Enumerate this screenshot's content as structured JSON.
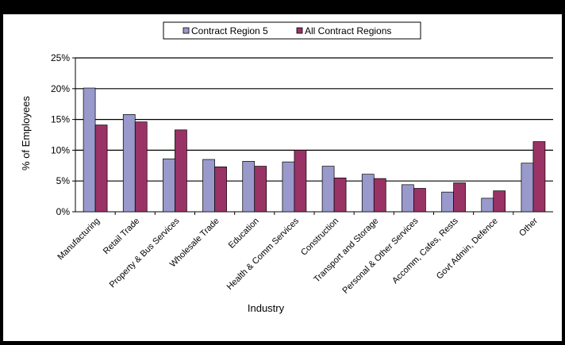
{
  "chart_data": {
    "type": "bar",
    "title": "",
    "xlabel": "Industry",
    "ylabel": "% of Employees",
    "ylim": [
      0,
      25
    ],
    "y_ticks": [
      "0%",
      "5%",
      "10%",
      "15%",
      "20%",
      "25%"
    ],
    "grid": true,
    "legend_position": "top-center",
    "categories": [
      "Manufacturing",
      "Retail Trade",
      "Property & Bus Services",
      "Wholesale Trade",
      "Education",
      "Health & Comm Services",
      "Construction",
      "Transport and Storage",
      "Personal & Other Services",
      "Accomm, Cafes, Rests",
      "Govt Admin, Defence",
      "Other"
    ],
    "series": [
      {
        "name": "Contract Region 5",
        "color": "#9999cc",
        "values": [
          20.1,
          15.8,
          8.6,
          8.5,
          8.2,
          8.1,
          7.4,
          6.1,
          4.4,
          3.2,
          2.2,
          7.9
        ]
      },
      {
        "name": "All Contract Regions",
        "color": "#993366",
        "values": [
          14.1,
          14.6,
          13.3,
          7.3,
          7.4,
          10.0,
          5.5,
          5.4,
          3.8,
          4.7,
          3.4,
          11.4
        ]
      }
    ]
  }
}
